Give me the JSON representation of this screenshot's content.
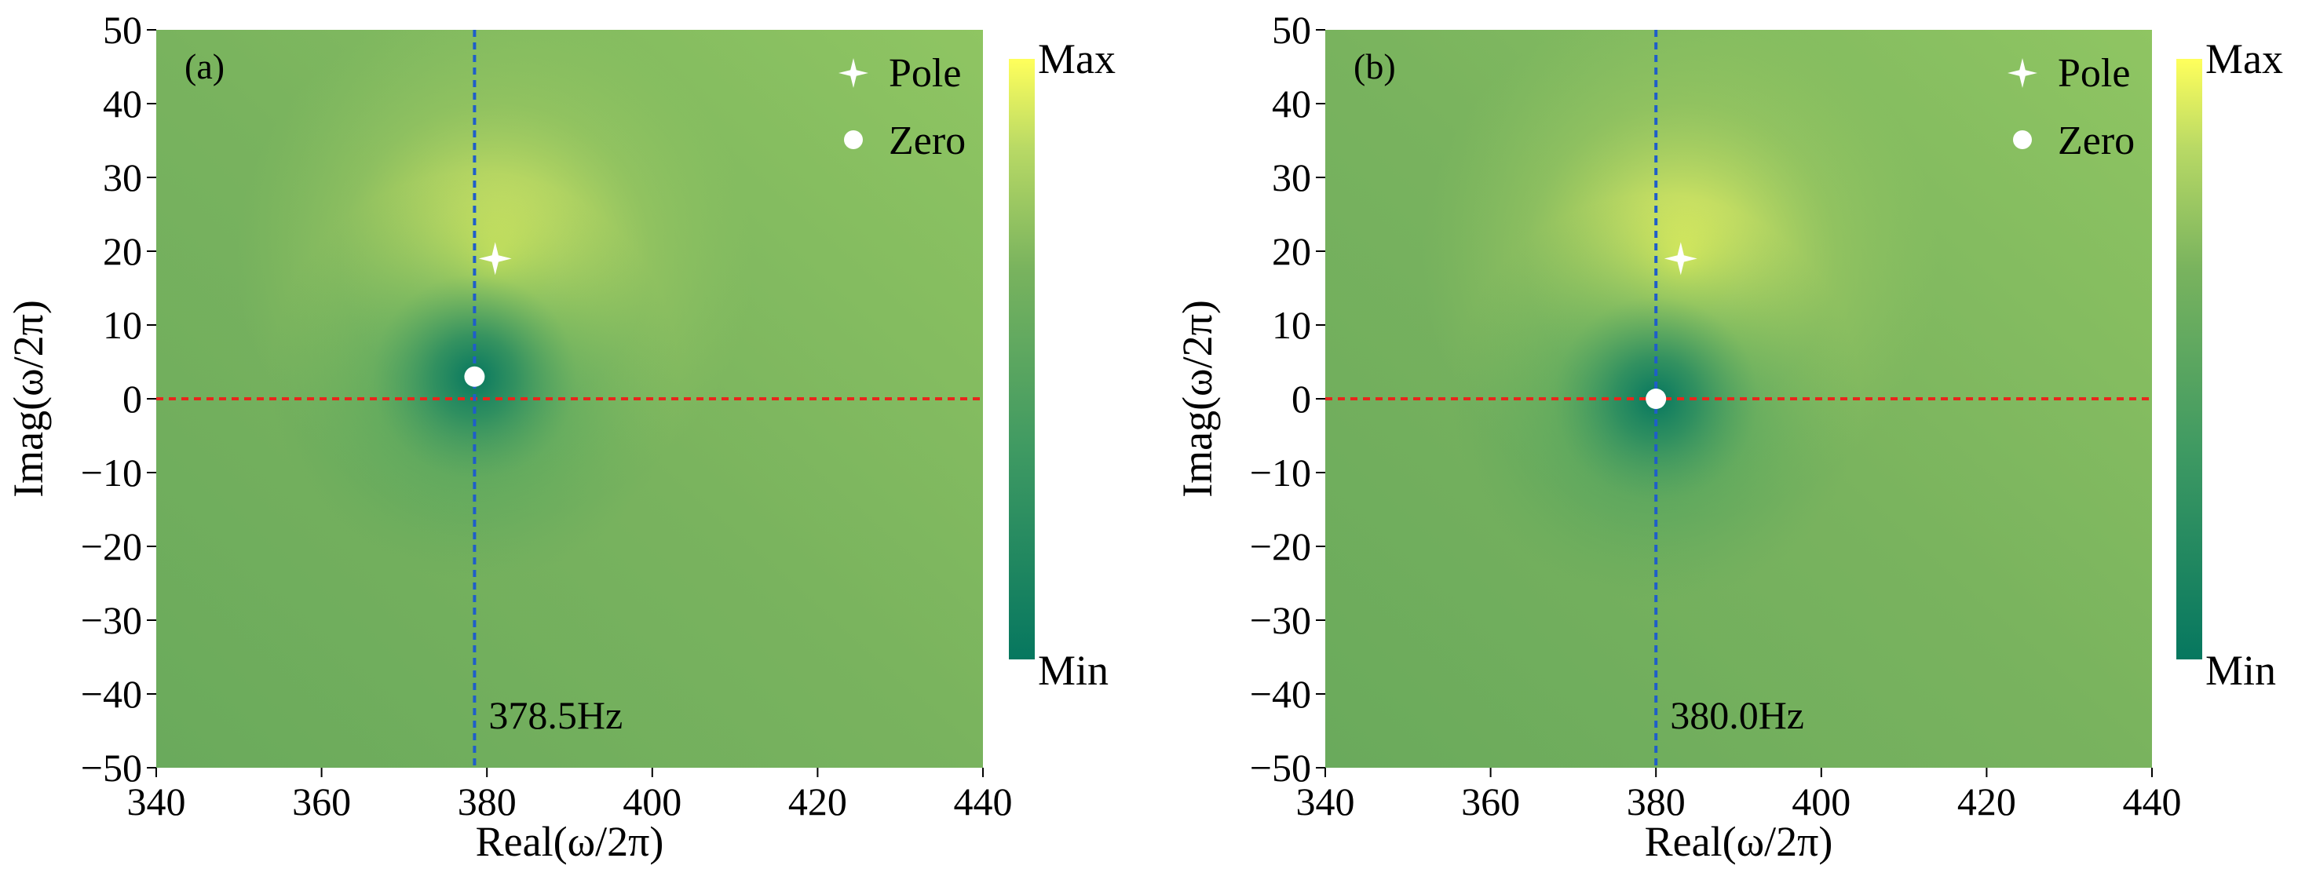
{
  "chart_data": [
    {
      "type": "heatmap",
      "panel_label": "(a)",
      "xlabel": "Real(ω/2π)",
      "ylabel": "Imag(ω/2π)",
      "xlim": [
        340,
        440
      ],
      "ylim": [
        -50,
        50
      ],
      "xticks": [
        340,
        360,
        380,
        400,
        420,
        440
      ],
      "yticks": [
        50,
        40,
        30,
        20,
        10,
        0,
        -10,
        -20,
        -30,
        -40,
        -50
      ],
      "pole": {
        "x": 381.0,
        "y": 19.0
      },
      "zero": {
        "x": 378.5,
        "y": 3.0
      },
      "vline": {
        "x": 378.5,
        "label": "378.5Hz"
      },
      "hline": {
        "y": 0
      },
      "legend": [
        "Pole",
        "Zero"
      ],
      "colorbar": {
        "max": "Max",
        "min": "Min"
      }
    },
    {
      "type": "heatmap",
      "panel_label": "(b)",
      "xlabel": "Real(ω/2π)",
      "ylabel": "Imag(ω/2π)",
      "xlim": [
        340,
        440
      ],
      "ylim": [
        -50,
        50
      ],
      "xticks": [
        340,
        360,
        380,
        400,
        420,
        440
      ],
      "yticks": [
        50,
        40,
        30,
        20,
        10,
        0,
        -10,
        -20,
        -30,
        -40,
        -50
      ],
      "pole": {
        "x": 383.0,
        "y": 19.0
      },
      "zero": {
        "x": 380.0,
        "y": 0.0
      },
      "vline": {
        "x": 380.0,
        "label": "380.0Hz"
      },
      "hline": {
        "y": 0
      },
      "legend": [
        "Pole",
        "Zero"
      ],
      "colorbar": {
        "max": "Max",
        "min": "Min"
      }
    }
  ],
  "colors": {
    "background_green": "#79b35e",
    "dark": "#06775f",
    "light": "#ffff5c",
    "hline": "#e8261c",
    "vline": "#1f5ec9",
    "marker": "#ffffff"
  }
}
